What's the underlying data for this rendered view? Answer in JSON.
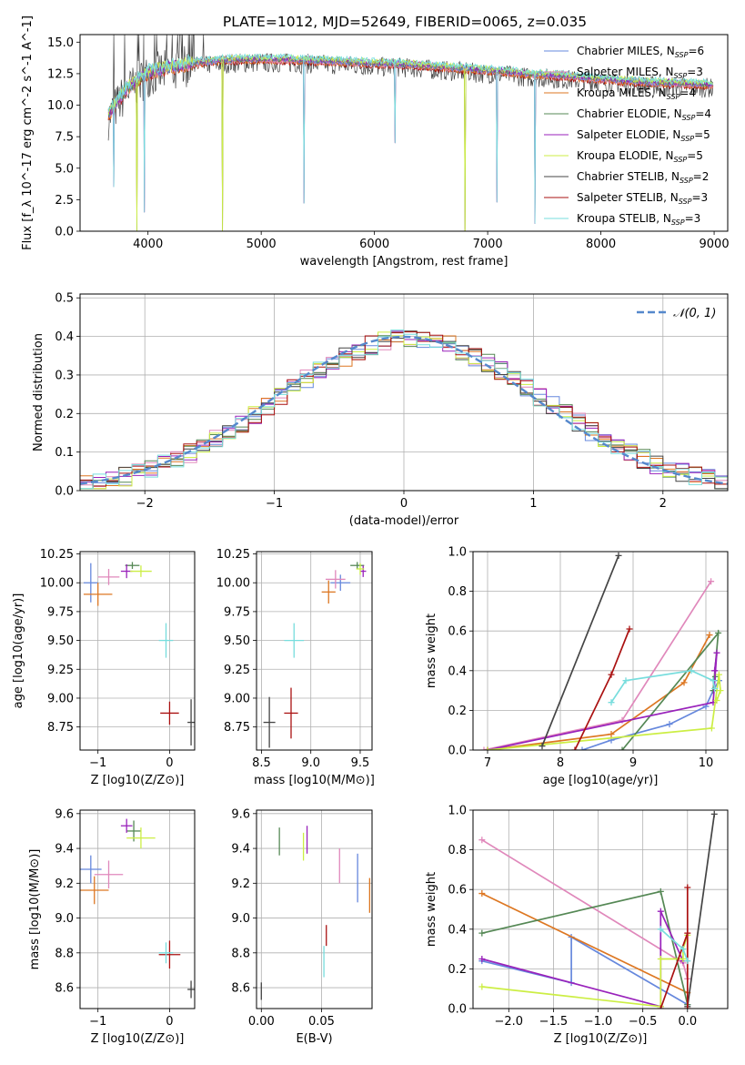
{
  "figure_title": "PLATE=1012, MJD=52649, FIBERID=0065, z=0.035",
  "series_colors": {
    "chabrier_miles": "#6688dd",
    "salpeter_miles": "#e088bb",
    "kroupa_miles": "#dd7722",
    "chabrier_elodie": "#558855",
    "salpeter_elodie": "#9922bb",
    "kroupa_elodie": "#ccee44",
    "chabrier_stelib": "#444444",
    "salpeter_stelib": "#aa1111",
    "kroupa_stelib": "#77dddd"
  },
  "chart_data": [
    {
      "type": "line",
      "title": "PLATE=1012, MJD=52649, FIBERID=0065, z=0.035",
      "xlabel": "wavelength [Angstrom, rest frame]",
      "ylabel": "Flux [f_λ 10^-17 erg cm^-2 s^-1 A^-1]",
      "xlim": [
        3400,
        9120
      ],
      "ylim": [
        0,
        15.6
      ],
      "xticks": [
        4000,
        5000,
        6000,
        7000,
        8000,
        9000
      ],
      "yticks": [
        0.0,
        2.5,
        5.0,
        7.5,
        10.0,
        12.5,
        15.0
      ],
      "grid": false,
      "legend_position": "upper-right",
      "series": [
        {
          "name": "Chabrier MILES, N_SSP=6",
          "key": "chabrier_miles"
        },
        {
          "name": "Salpeter MILES, N_SSP=3",
          "key": "salpeter_miles"
        },
        {
          "name": "Kroupa MILES, N_SSP=4",
          "key": "kroupa_miles"
        },
        {
          "name": "Chabrier ELODIE, N_SSP=4",
          "key": "chabrier_elodie"
        },
        {
          "name": "Salpeter ELODIE, N_SSP=5",
          "key": "salpeter_elodie"
        },
        {
          "name": "Kroupa ELODIE, N_SSP=5",
          "key": "kroupa_elodie"
        },
        {
          "name": "Chabrier STELIB, N_SSP=2",
          "key": "chabrier_stelib"
        },
        {
          "name": "Salpeter STELIB, N_SSP=3",
          "key": "salpeter_stelib"
        },
        {
          "name": "Kroupa STELIB, N_SSP=3",
          "key": "kroupa_stelib"
        }
      ],
      "continuum": {
        "x": [
          3650,
          3800,
          4000,
          4200,
          4400,
          4600,
          4800,
          5000,
          5200,
          5500,
          5800,
          6000,
          6300,
          6600,
          6900,
          7200,
          7420,
          7500,
          7800,
          8100,
          8400,
          8700,
          9000
        ],
        "y": [
          9.2,
          11.2,
          12.6,
          13.0,
          13.3,
          13.5,
          13.6,
          13.6,
          13.6,
          13.5,
          13.4,
          13.3,
          13.2,
          13.0,
          12.8,
          12.6,
          12.4,
          12.4,
          12.2,
          12.0,
          11.8,
          11.7,
          11.6
        ]
      },
      "spikes": [
        {
          "x": 3700,
          "y": 3.5
        },
        {
          "x": 3900,
          "y": 0.0
        },
        {
          "x": 3970,
          "y": 1.5
        },
        {
          "x": 4660,
          "y": 0.0
        },
        {
          "x": 5380,
          "y": 2.2
        },
        {
          "x": 6180,
          "y": 7.0
        },
        {
          "x": 6800,
          "y": 0.0
        },
        {
          "x": 7080,
          "y": 2.3
        },
        {
          "x": 7420,
          "y": 0.6
        }
      ]
    },
    {
      "type": "line",
      "xlabel": "(data-model)/error",
      "ylabel": "Normed distribution",
      "xlim": [
        -2.5,
        2.5
      ],
      "ylim": [
        0,
        0.51
      ],
      "xticks": [
        -2,
        -1,
        0,
        1,
        2
      ],
      "yticks": [
        0.0,
        0.1,
        0.2,
        0.3,
        0.4,
        0.5
      ],
      "grid": true,
      "legend_position": "upper-right",
      "reference_curve": {
        "name": "𝒩(0, 1)",
        "style": "dashed",
        "color": "#5588cc"
      },
      "histogram_bins": {
        "start": -2.5,
        "width": 0.1,
        "count": 50
      },
      "histogram_base": [
        0.018,
        0.023,
        0.03,
        0.037,
        0.046,
        0.056,
        0.068,
        0.082,
        0.098,
        0.115,
        0.134,
        0.154,
        0.176,
        0.198,
        0.221,
        0.244,
        0.266,
        0.288,
        0.31,
        0.33,
        0.348,
        0.364,
        0.377,
        0.388,
        0.396,
        0.398,
        0.396,
        0.388,
        0.377,
        0.364,
        0.348,
        0.33,
        0.31,
        0.288,
        0.266,
        0.244,
        0.221,
        0.198,
        0.176,
        0.154,
        0.134,
        0.115,
        0.098,
        0.082,
        0.068,
        0.056,
        0.046,
        0.037,
        0.03,
        0.023
      ]
    },
    {
      "type": "scatter",
      "xlabel": "Z [log10(Z/Z⊙)]",
      "ylabel": "age [log10(age/yr)]",
      "xlim": [
        -1.25,
        0.35
      ],
      "ylim": [
        8.55,
        10.27
      ],
      "xticks": [
        -1,
        0
      ],
      "yticks": [
        8.75,
        9.0,
        9.25,
        9.5,
        9.75,
        10.0,
        10.25
      ],
      "grid": true,
      "points": [
        {
          "key": "chabrier_miles",
          "x": -1.1,
          "y": 10.0,
          "xerr": 0.1,
          "yerr": 0.17
        },
        {
          "key": "salpeter_miles",
          "x": -0.85,
          "y": 10.05,
          "xerr": 0.15,
          "yerr": 0.07
        },
        {
          "key": "kroupa_miles",
          "x": -1.0,
          "y": 9.9,
          "xerr": 0.2,
          "yerr": 0.1
        },
        {
          "key": "chabrier_elodie",
          "x": -0.52,
          "y": 10.15,
          "xerr": 0.1,
          "yerr": 0.03
        },
        {
          "key": "salpeter_elodie",
          "x": -0.6,
          "y": 10.1,
          "xerr": 0.08,
          "yerr": 0.06
        },
        {
          "key": "kroupa_elodie",
          "x": -0.4,
          "y": 10.1,
          "xerr": 0.15,
          "yerr": 0.05
        },
        {
          "key": "chabrier_stelib",
          "x": 0.3,
          "y": 8.79,
          "xerr": 0.05,
          "yerr": 0.2
        },
        {
          "key": "salpeter_stelib",
          "x": 0.0,
          "y": 8.87,
          "xerr": 0.13,
          "yerr": 0.1
        },
        {
          "key": "kroupa_stelib",
          "x": -0.05,
          "y": 9.5,
          "xerr": 0.1,
          "yerr": 0.15
        }
      ]
    },
    {
      "type": "scatter",
      "xlabel": "mass [log10(M/M⊙)]",
      "ylabel": "",
      "xlim": [
        8.45,
        9.62
      ],
      "ylim": [
        8.55,
        10.27
      ],
      "xticks": [
        8.5,
        9.0,
        9.5
      ],
      "yticks": [
        8.75,
        9.0,
        9.25,
        9.5,
        9.75,
        10.0,
        10.25
      ],
      "grid": true,
      "points": [
        {
          "key": "chabrier_miles",
          "x": 9.3,
          "y": 10.0,
          "xerr": 0.1,
          "yerr": 0.07
        },
        {
          "key": "salpeter_miles",
          "x": 9.25,
          "y": 10.03,
          "xerr": 0.1,
          "yerr": 0.08
        },
        {
          "key": "kroupa_miles",
          "x": 9.18,
          "y": 9.92,
          "xerr": 0.07,
          "yerr": 0.1
        },
        {
          "key": "chabrier_elodie",
          "x": 9.47,
          "y": 10.15,
          "xerr": 0.07,
          "yerr": 0.03
        },
        {
          "key": "salpeter_elodie",
          "x": 9.53,
          "y": 10.1,
          "xerr": 0.03,
          "yerr": 0.05
        },
        {
          "key": "kroupa_elodie",
          "x": 9.5,
          "y": 10.12,
          "xerr": 0.04,
          "yerr": 0.05
        },
        {
          "key": "chabrier_stelib",
          "x": 8.58,
          "y": 8.79,
          "xerr": 0.06,
          "yerr": 0.22
        },
        {
          "key": "salpeter_stelib",
          "x": 8.8,
          "y": 8.87,
          "xerr": 0.07,
          "yerr": 0.22
        },
        {
          "key": "kroupa_stelib",
          "x": 8.83,
          "y": 9.5,
          "xerr": 0.1,
          "yerr": 0.15
        }
      ]
    },
    {
      "type": "line",
      "xlabel": "age [log10(age/yr)]",
      "ylabel": "mass weight",
      "xlim": [
        6.8,
        10.3
      ],
      "ylim": [
        0,
        1.0
      ],
      "xticks": [
        7,
        8,
        9,
        10
      ],
      "yticks": [
        0.0,
        0.2,
        0.4,
        0.6,
        0.8,
        1.0
      ],
      "grid": true,
      "series": [
        {
          "key": "chabrier_miles",
          "x": [
            8.3,
            8.7,
            9.5,
            10.0,
            10.1,
            10.18
          ],
          "y": [
            0.0,
            0.05,
            0.13,
            0.22,
            0.3,
            0.35
          ]
        },
        {
          "key": "salpeter_miles",
          "x": [
            6.95,
            8.85,
            10.07
          ],
          "y": [
            0.0,
            0.15,
            0.85
          ]
        },
        {
          "key": "kroupa_miles",
          "x": [
            7.0,
            8.7,
            9.7,
            10.05
          ],
          "y": [
            0.0,
            0.08,
            0.34,
            0.58
          ]
        },
        {
          "key": "chabrier_elodie",
          "x": [
            8.85,
            10.17,
            10.1,
            10.13
          ],
          "y": [
            0.0,
            0.59,
            0.3,
            0.37
          ]
        },
        {
          "key": "salpeter_elodie",
          "x": [
            7.0,
            10.1,
            10.15,
            10.12
          ],
          "y": [
            0.0,
            0.24,
            0.49,
            0.4
          ]
        },
        {
          "key": "kroupa_elodie",
          "x": [
            7.0,
            10.08,
            10.18,
            10.2,
            10.15
          ],
          "y": [
            0.0,
            0.11,
            0.38,
            0.3,
            0.25
          ]
        },
        {
          "key": "chabrier_stelib",
          "x": [
            7.75,
            8.8
          ],
          "y": [
            0.02,
            0.98
          ]
        },
        {
          "key": "salpeter_stelib",
          "x": [
            8.2,
            8.7,
            8.95
          ],
          "y": [
            0.0,
            0.38,
            0.61
          ]
        },
        {
          "key": "kroupa_stelib",
          "x": [
            8.7,
            8.9,
            9.8,
            10.1,
            10.12
          ],
          "y": [
            0.24,
            0.35,
            0.4,
            0.35,
            0.31
          ]
        }
      ]
    },
    {
      "type": "scatter",
      "xlabel": "Z [log10(Z/Z⊙)]",
      "ylabel": "mass [log10(M/M⊙)]",
      "xlim": [
        -1.25,
        0.35
      ],
      "ylim": [
        8.48,
        9.62
      ],
      "xticks": [
        -1,
        0
      ],
      "yticks": [
        8.6,
        8.8,
        9.0,
        9.2,
        9.4,
        9.6
      ],
      "grid": true,
      "points": [
        {
          "key": "chabrier_miles",
          "x": -1.1,
          "y": 9.28,
          "xerr": 0.15,
          "yerr": 0.08
        },
        {
          "key": "salpeter_miles",
          "x": -0.85,
          "y": 9.25,
          "xerr": 0.2,
          "yerr": 0.08
        },
        {
          "key": "kroupa_miles",
          "x": -1.05,
          "y": 9.16,
          "xerr": 0.2,
          "yerr": 0.08
        },
        {
          "key": "chabrier_elodie",
          "x": -0.5,
          "y": 9.5,
          "xerr": 0.1,
          "yerr": 0.06
        },
        {
          "key": "salpeter_elodie",
          "x": -0.6,
          "y": 9.53,
          "xerr": 0.08,
          "yerr": 0.04
        },
        {
          "key": "kroupa_elodie",
          "x": -0.4,
          "y": 9.46,
          "xerr": 0.2,
          "yerr": 0.06
        },
        {
          "key": "chabrier_stelib",
          "x": 0.3,
          "y": 8.59,
          "xerr": 0.05,
          "yerr": 0.05
        },
        {
          "key": "salpeter_stelib",
          "x": 0.0,
          "y": 8.79,
          "xerr": 0.15,
          "yerr": 0.08
        },
        {
          "key": "kroupa_stelib",
          "x": -0.05,
          "y": 8.8,
          "xerr": 0.1,
          "yerr": 0.06
        }
      ]
    },
    {
      "type": "scatter",
      "xlabel": "E(B-V)",
      "ylabel": "",
      "xlim": [
        -0.004,
        0.092
      ],
      "ylim": [
        8.48,
        9.62
      ],
      "xticks": [
        0.0,
        0.05
      ],
      "yticks": [
        8.6,
        8.8,
        9.0,
        9.2,
        9.4,
        9.6
      ],
      "grid": true,
      "points": [
        {
          "key": "chabrier_miles",
          "x": 0.08,
          "y": 9.23,
          "yerr": 0.14
        },
        {
          "key": "salpeter_miles",
          "x": 0.065,
          "y": 9.3,
          "yerr": 0.1
        },
        {
          "key": "kroupa_miles",
          "x": 0.09,
          "y": 9.13,
          "yerr": 0.1
        },
        {
          "key": "chabrier_elodie",
          "x": 0.015,
          "y": 9.44,
          "yerr": 0.08
        },
        {
          "key": "salpeter_elodie",
          "x": 0.038,
          "y": 9.45,
          "yerr": 0.08
        },
        {
          "key": "kroupa_elodie",
          "x": 0.035,
          "y": 9.41,
          "yerr": 0.08
        },
        {
          "key": "chabrier_stelib",
          "x": 0.0,
          "y": 8.58,
          "yerr": 0.05
        },
        {
          "key": "salpeter_stelib",
          "x": 0.054,
          "y": 8.9,
          "yerr": 0.06
        },
        {
          "key": "kroupa_stelib",
          "x": 0.052,
          "y": 8.75,
          "yerr": 0.09
        }
      ]
    },
    {
      "type": "line",
      "xlabel": "Z [log10(Z/Z⊙)]",
      "ylabel": "mass weight",
      "xlim": [
        -2.4,
        0.45
      ],
      "ylim": [
        0,
        1.0
      ],
      "xticks": [
        -2.0,
        -1.5,
        -1.0,
        -0.5,
        0.0
      ],
      "yticks": [
        0.0,
        0.2,
        0.4,
        0.6,
        0.8,
        1.0
      ],
      "grid": true,
      "series": [
        {
          "key": "chabrier_miles",
          "x": [
            -2.3,
            -1.3,
            -1.3,
            0.0
          ],
          "y": [
            0.24,
            0.13,
            0.36,
            0.02
          ]
        },
        {
          "key": "salpeter_miles",
          "x": [
            -2.3,
            -0.05,
            0.0
          ],
          "y": [
            0.85,
            0.23,
            0.15
          ]
        },
        {
          "key": "kroupa_miles",
          "x": [
            -2.3,
            0.0
          ],
          "y": [
            0.58,
            0.08
          ]
        },
        {
          "key": "chabrier_elodie",
          "x": [
            -2.3,
            -0.3,
            0.0
          ],
          "y": [
            0.38,
            0.59,
            0.02
          ]
        },
        {
          "key": "salpeter_elodie",
          "x": [
            -2.3,
            -0.3,
            -0.3,
            -0.05
          ],
          "y": [
            0.25,
            0.01,
            0.49,
            0.24
          ]
        },
        {
          "key": "kroupa_elodie",
          "x": [
            -2.3,
            -0.3,
            -0.3,
            -0.05,
            -0.05,
            0.0
          ],
          "y": [
            0.11,
            0.01,
            0.25,
            0.25,
            0.3,
            0.37
          ]
        },
        {
          "key": "chabrier_stelib",
          "x": [
            0.0,
            0.3
          ],
          "y": [
            0.01,
            0.98
          ]
        },
        {
          "key": "salpeter_stelib",
          "x": [
            -0.3,
            0.0,
            0.0,
            0.0
          ],
          "y": [
            0.0,
            0.38,
            0.61,
            0.0
          ]
        },
        {
          "key": "kroupa_stelib",
          "x": [
            -0.3,
            -0.05,
            0.0
          ],
          "y": [
            0.4,
            0.3,
            0.24
          ]
        }
      ]
    }
  ]
}
